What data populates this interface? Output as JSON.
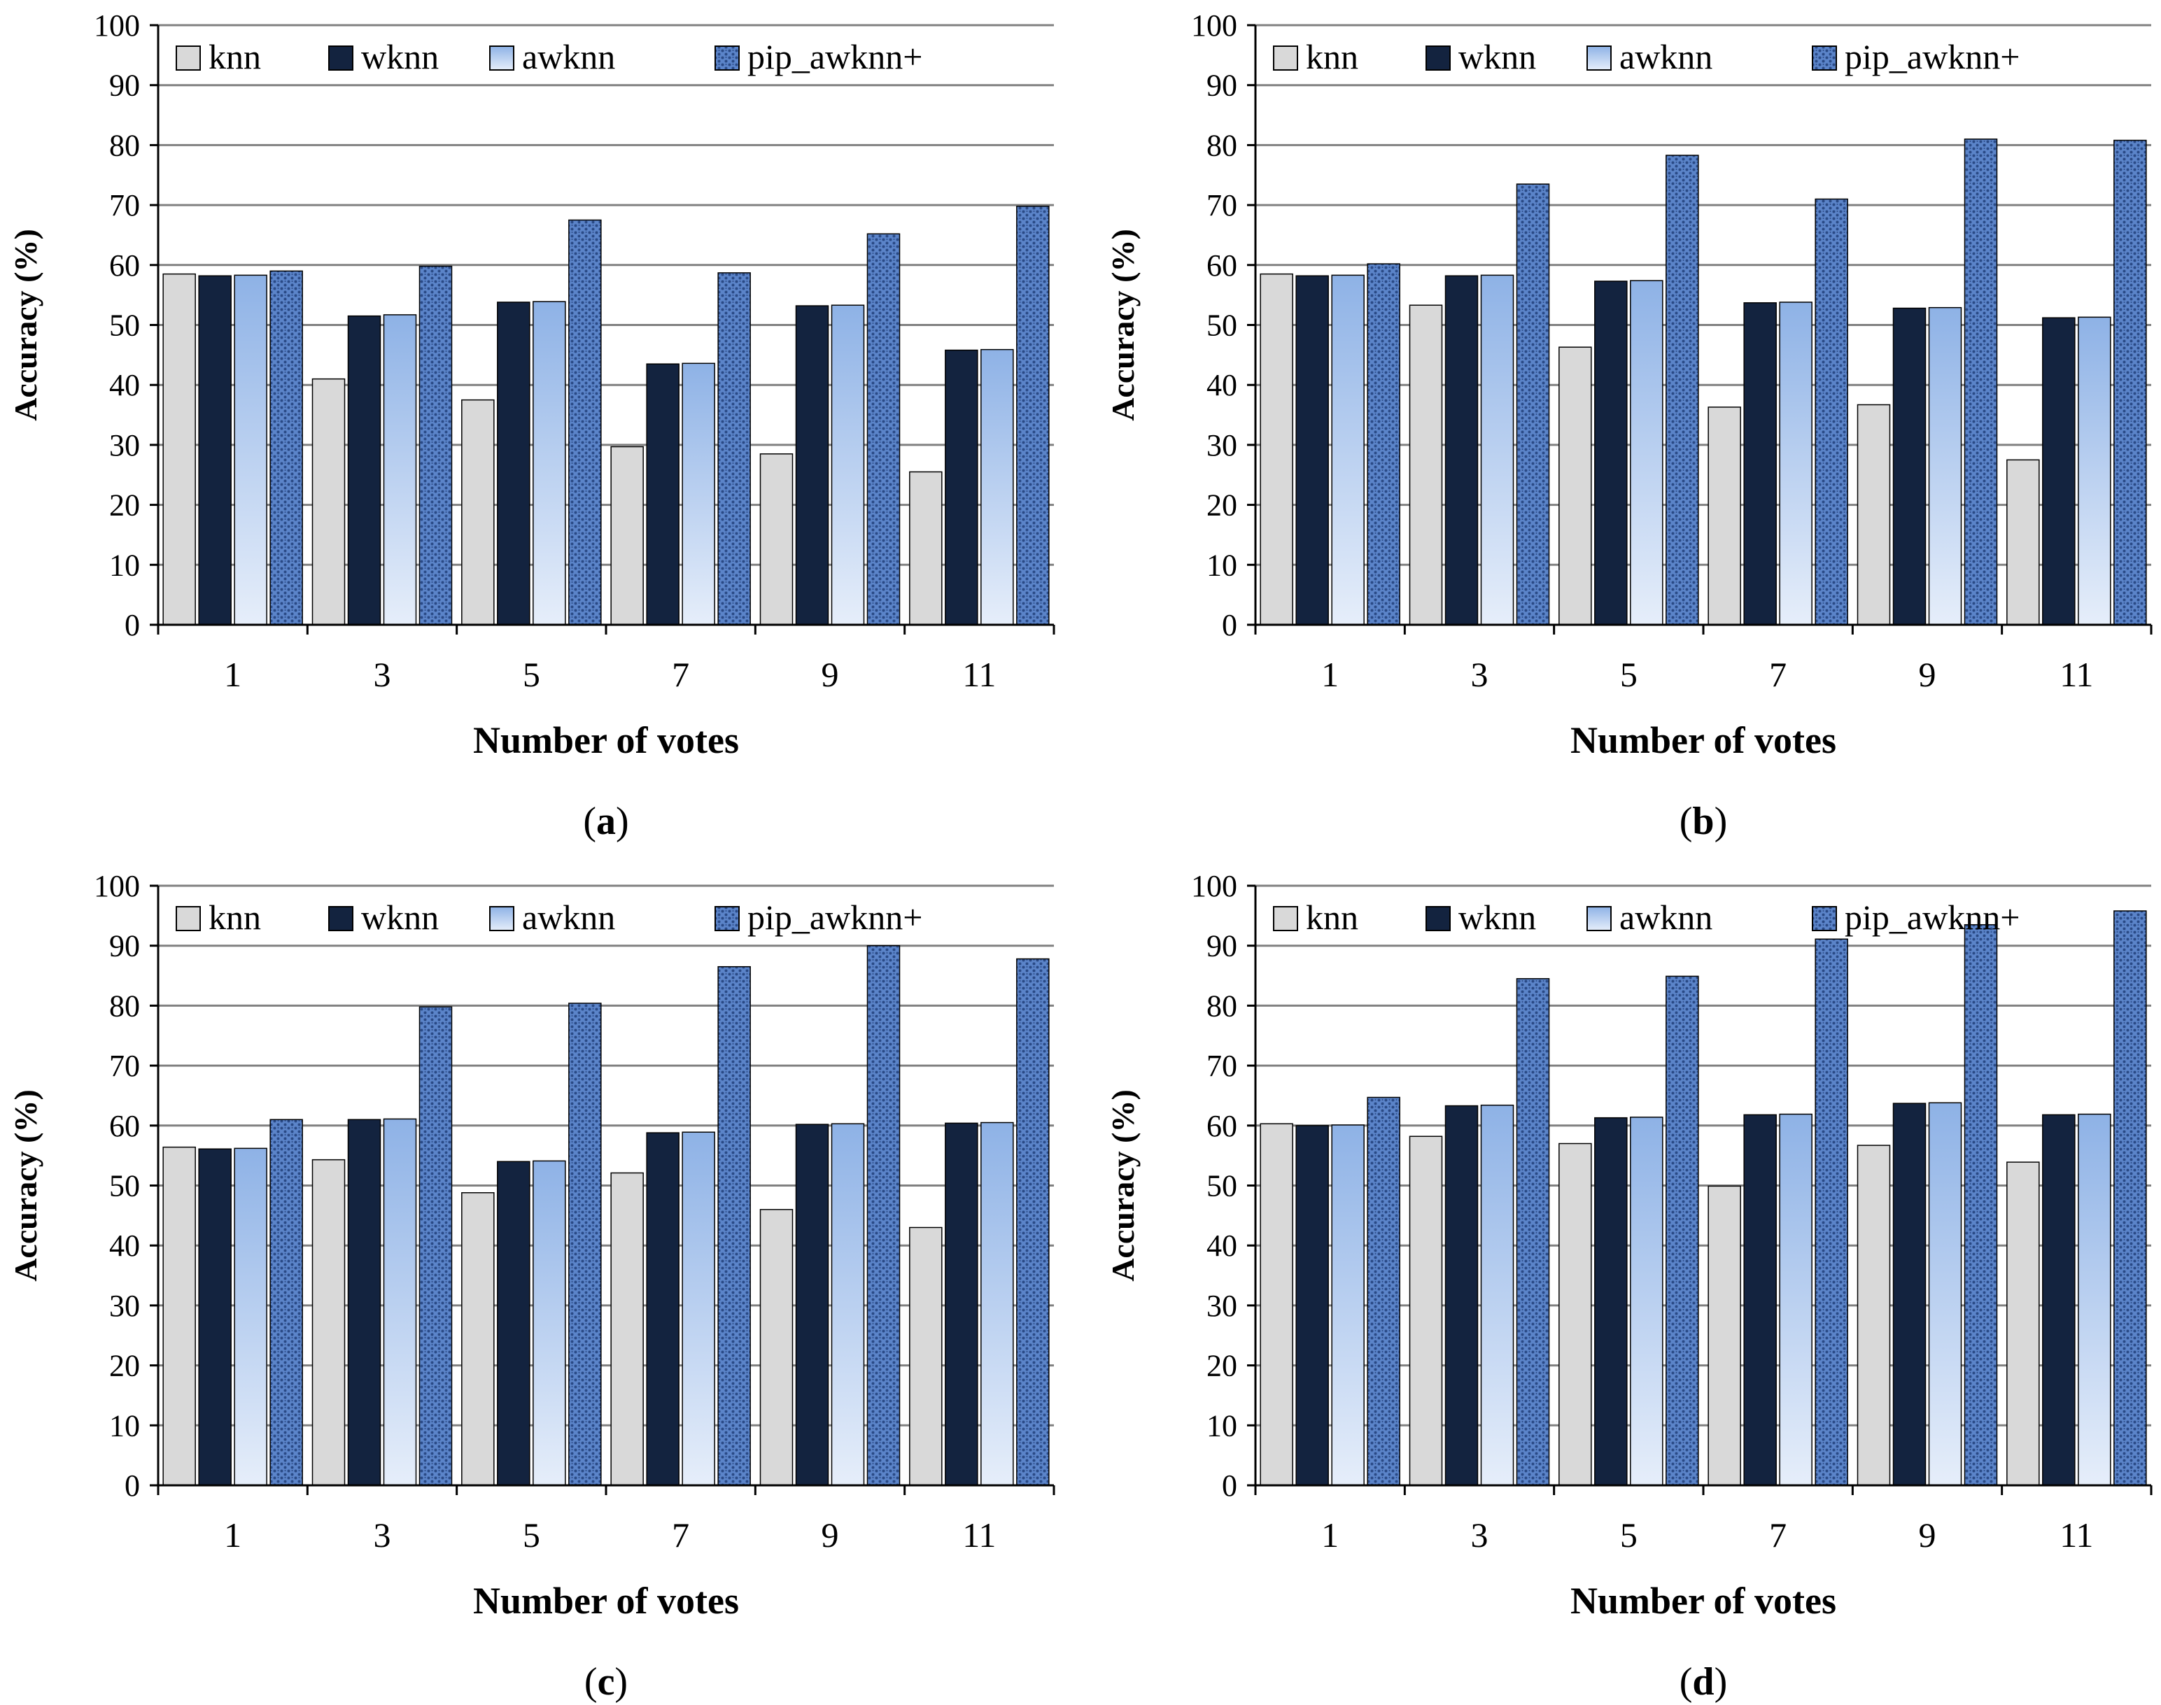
{
  "legend": [
    "knn",
    "wknn",
    "awknn",
    "pip_awknn+"
  ],
  "colors": {
    "knn": "#d9d9d9",
    "wknn": "#13233f",
    "awknn_top": "#8eb2e6",
    "awknn_bottom": "#e6eefa",
    "pip": "#5b84c9",
    "pip_dot": "#2a4a86",
    "grid": "#808080",
    "bar_edge": "#000000"
  },
  "chart_data": [
    {
      "type": "bar",
      "panel_label": "(a)",
      "panel_letter": "a",
      "categories": [
        "1",
        "3",
        "5",
        "7",
        "9",
        "11"
      ],
      "series": [
        {
          "name": "knn",
          "values": [
            58.5,
            41,
            37.5,
            29.7,
            28.5,
            25.5
          ]
        },
        {
          "name": "wknn",
          "values": [
            58.2,
            51.5,
            53.8,
            43.5,
            53.2,
            45.8
          ]
        },
        {
          "name": "awknn",
          "values": [
            58.3,
            51.7,
            53.9,
            43.6,
            53.3,
            45.9
          ]
        },
        {
          "name": "pip_awknn+",
          "values": [
            59,
            59.8,
            67.5,
            58.7,
            65.2,
            69.8
          ]
        }
      ],
      "xlabel": "Number of votes",
      "ylabel": "Accuracy (%)",
      "ylim": [
        0,
        100
      ],
      "yticks": [
        "0",
        "10",
        "20",
        "30",
        "40",
        "50",
        "60",
        "70",
        "80",
        "90",
        "100"
      ],
      "grid": true,
      "legend_position": "top"
    },
    {
      "type": "bar",
      "panel_label": "(b)",
      "panel_letter": "b",
      "categories": [
        "1",
        "3",
        "5",
        "7",
        "9",
        "11"
      ],
      "series": [
        {
          "name": "knn",
          "values": [
            58.5,
            53.3,
            46.3,
            36.3,
            36.7,
            27.5
          ]
        },
        {
          "name": "wknn",
          "values": [
            58.2,
            58.2,
            57.3,
            53.7,
            52.8,
            51.2
          ]
        },
        {
          "name": "awknn",
          "values": [
            58.3,
            58.3,
            57.4,
            53.8,
            52.9,
            51.3
          ]
        },
        {
          "name": "pip_awknn+",
          "values": [
            60.2,
            73.5,
            78.3,
            71,
            81,
            80.8
          ]
        }
      ],
      "xlabel": "Number of votes",
      "ylabel": "Accuracy (%)",
      "ylim": [
        0,
        100
      ],
      "yticks": [
        "0",
        "10",
        "20",
        "30",
        "40",
        "50",
        "60",
        "70",
        "80",
        "90",
        "100"
      ],
      "grid": true,
      "legend_position": "top"
    },
    {
      "type": "bar",
      "panel_label": "(c)",
      "panel_letter": "c",
      "categories": [
        "1",
        "3",
        "5",
        "7",
        "9",
        "11"
      ],
      "series": [
        {
          "name": "knn",
          "values": [
            56.4,
            54.3,
            48.8,
            52.1,
            46,
            43
          ]
        },
        {
          "name": "wknn",
          "values": [
            56.1,
            61,
            54,
            58.8,
            60.2,
            60.4
          ]
        },
        {
          "name": "awknn",
          "values": [
            56.2,
            61.1,
            54.1,
            58.9,
            60.3,
            60.5
          ]
        },
        {
          "name": "pip_awknn+",
          "values": [
            61,
            79.8,
            80.4,
            86.5,
            90,
            87.8
          ]
        }
      ],
      "xlabel": "Number of votes",
      "ylabel": "Accuracy (%)",
      "ylim": [
        0,
        100
      ],
      "yticks": [
        "0",
        "10",
        "20",
        "30",
        "40",
        "50",
        "60",
        "70",
        "80",
        "90",
        "100"
      ],
      "grid": true,
      "legend_position": "top"
    },
    {
      "type": "bar",
      "panel_label": "(d)",
      "panel_letter": "d",
      "categories": [
        "1",
        "3",
        "5",
        "7",
        "9",
        "11"
      ],
      "series": [
        {
          "name": "knn",
          "values": [
            60.3,
            58.2,
            57,
            49.9,
            56.7,
            53.9
          ]
        },
        {
          "name": "wknn",
          "values": [
            60,
            63.3,
            61.3,
            61.8,
            63.7,
            61.8
          ]
        },
        {
          "name": "awknn",
          "values": [
            60.1,
            63.4,
            61.4,
            61.9,
            63.8,
            61.9
          ]
        },
        {
          "name": "pip_awknn+",
          "values": [
            64.7,
            84.5,
            84.9,
            91.1,
            93.5,
            95.8
          ]
        }
      ],
      "xlabel": "Number of votes",
      "ylabel": "Accuracy (%)",
      "ylim": [
        0,
        100
      ],
      "yticks": [
        "0",
        "10",
        "20",
        "30",
        "40",
        "50",
        "60",
        "70",
        "80",
        "90",
        "100"
      ],
      "grid": true,
      "legend_position": "top"
    }
  ]
}
